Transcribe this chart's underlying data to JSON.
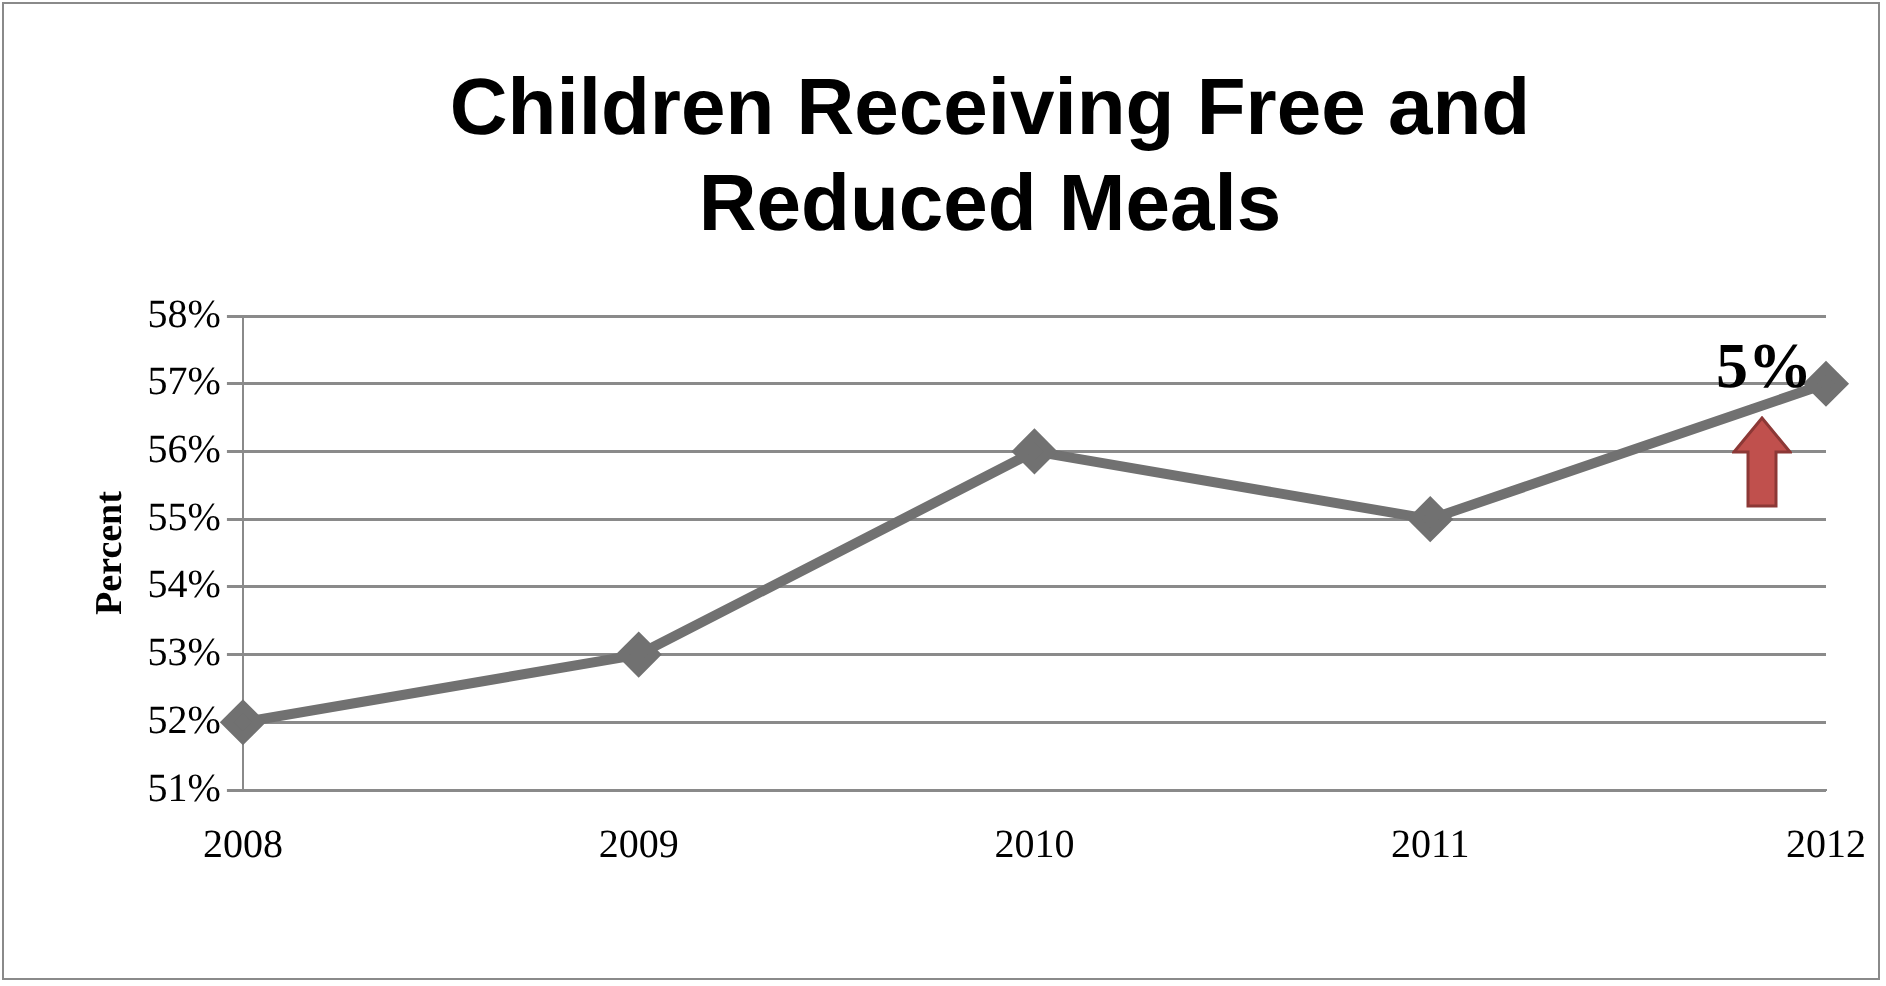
{
  "chart_data": {
    "type": "line",
    "title": "Children Receiving Free and Reduced Meals",
    "ylabel": "Percent",
    "categories": [
      "2008",
      "2009",
      "2010",
      "2011",
      "2012"
    ],
    "series": [
      {
        "color": "#717171",
        "values": [
          52,
          53,
          56,
          55,
          57
        ]
      }
    ],
    "ylim": [
      51,
      58
    ],
    "yticks": [
      {
        "value": 51,
        "label": "51%"
      },
      {
        "value": 52,
        "label": "52%"
      },
      {
        "value": 53,
        "label": "53%"
      },
      {
        "value": 54,
        "label": "54%"
      },
      {
        "value": 55,
        "label": "55%"
      },
      {
        "value": 56,
        "label": "56%"
      },
      {
        "value": 57,
        "label": "57%"
      },
      {
        "value": 58,
        "label": "58%"
      }
    ],
    "grid": "y",
    "legend": false,
    "marker": "diamond",
    "line_style": "solid",
    "annotations": [
      "5%"
    ]
  }
}
